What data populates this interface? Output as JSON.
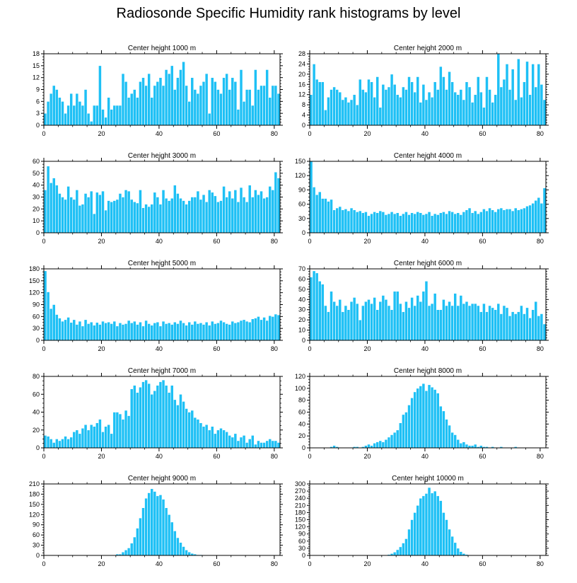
{
  "figure_title": "Radiosonde Specific Humidity rank histograms by level",
  "colors": {
    "bar": "#1ec0f5",
    "bar_edge": "#ffffff",
    "axis": "#000000"
  },
  "chart_data": [
    {
      "type": "bar",
      "title": "Center height 1000 m",
      "xlim": [
        0,
        82
      ],
      "xticks": [
        0,
        20,
        40,
        60,
        80
      ],
      "ylim": [
        0,
        18
      ],
      "yticks": [
        0,
        3,
        6,
        9,
        12,
        15,
        18
      ],
      "categories_start": 0,
      "values": [
        3,
        6,
        8,
        10,
        9,
        7,
        6,
        3,
        5,
        8,
        5,
        8,
        6,
        5,
        9,
        3,
        1,
        5,
        5,
        15,
        4,
        2,
        7,
        4,
        5,
        5,
        5,
        13,
        11,
        7,
        8,
        9,
        7,
        11,
        12,
        10,
        13,
        7,
        10,
        11,
        12,
        10,
        14,
        13,
        15,
        9,
        12,
        14,
        16,
        10,
        6,
        12,
        9,
        8,
        10,
        11,
        13,
        3,
        12,
        11,
        9,
        8,
        12,
        13,
        9,
        12,
        11,
        4,
        14,
        6,
        9,
        9,
        5,
        14,
        9,
        10,
        10,
        14,
        7,
        10,
        10,
        8
      ]
    },
    {
      "type": "bar",
      "title": "Center height 2000 m",
      "xlim": [
        0,
        82
      ],
      "xticks": [
        0,
        20,
        40,
        60,
        80
      ],
      "ylim": [
        0,
        28
      ],
      "yticks": [
        0,
        4,
        8,
        12,
        16,
        20,
        24,
        28
      ],
      "categories_start": 0,
      "values": [
        12,
        24,
        18,
        17,
        17,
        6,
        11,
        14,
        15,
        14,
        13,
        10,
        11,
        9,
        10,
        12,
        8,
        18,
        14,
        13,
        18,
        17,
        11,
        19,
        7,
        16,
        14,
        15,
        20,
        16,
        12,
        11,
        15,
        14,
        19,
        17,
        13,
        19,
        9,
        16,
        10,
        13,
        11,
        17,
        14,
        23,
        19,
        14,
        21,
        17,
        13,
        12,
        14,
        10,
        17,
        15,
        9,
        12,
        19,
        13,
        7,
        19,
        14,
        9,
        12,
        28,
        15,
        18,
        24,
        14,
        22,
        10,
        26,
        11,
        17,
        25,
        12,
        24,
        15,
        24,
        16,
        10
      ]
    },
    {
      "type": "bar",
      "title": "Center height 3000 m",
      "xlim": [
        0,
        82
      ],
      "xticks": [
        0,
        20,
        40,
        60,
        80
      ],
      "ylim": [
        0,
        60
      ],
      "yticks": [
        0,
        10,
        20,
        30,
        40,
        50,
        60
      ],
      "categories_start": 0,
      "values": [
        36,
        56,
        42,
        46,
        40,
        33,
        30,
        28,
        39,
        30,
        28,
        36,
        23,
        24,
        33,
        30,
        35,
        16,
        34,
        32,
        35,
        19,
        27,
        26,
        27,
        28,
        33,
        30,
        36,
        35,
        28,
        26,
        25,
        36,
        21,
        24,
        22,
        24,
        34,
        30,
        24,
        36,
        29,
        27,
        29,
        40,
        33,
        29,
        27,
        24,
        27,
        30,
        30,
        35,
        28,
        32,
        26,
        36,
        34,
        31,
        26,
        27,
        39,
        30,
        35,
        29,
        36,
        26,
        38,
        30,
        26,
        40,
        30,
        36,
        32,
        35,
        29,
        30,
        39,
        36,
        51,
        46,
        34
      ]
    },
    {
      "type": "bar",
      "title": "Center height 4000 m",
      "xlim": [
        0,
        82
      ],
      "xticks": [
        0,
        20,
        40,
        60,
        80
      ],
      "ylim": [
        0,
        150
      ],
      "yticks": [
        0,
        30,
        60,
        90,
        120,
        150
      ],
      "categories_start": 0,
      "values": [
        150,
        96,
        80,
        86,
        72,
        72,
        66,
        70,
        48,
        52,
        55,
        48,
        50,
        46,
        52,
        48,
        44,
        46,
        42,
        44,
        36,
        40,
        44,
        42,
        46,
        44,
        38,
        40,
        44,
        40,
        42,
        36,
        40,
        44,
        38,
        42,
        40,
        44,
        42,
        38,
        40,
        44,
        36,
        40,
        38,
        42,
        44,
        40,
        46,
        44,
        40,
        42,
        38,
        44,
        48,
        52,
        42,
        46,
        40,
        44,
        50,
        46,
        52,
        48,
        44,
        50,
        52,
        48,
        50,
        50,
        46,
        52,
        48,
        50,
        52,
        56,
        58,
        62,
        68,
        74,
        62,
        94,
        64
      ]
    },
    {
      "type": "bar",
      "title": "Center height 5000 m",
      "xlim": [
        0,
        82
      ],
      "xticks": [
        0,
        20,
        40,
        60,
        80
      ],
      "ylim": [
        0,
        180
      ],
      "yticks": [
        0,
        30,
        60,
        90,
        120,
        150,
        180
      ],
      "categories_start": 0,
      "values": [
        175,
        122,
        80,
        90,
        65,
        56,
        48,
        52,
        58,
        45,
        52,
        40,
        48,
        36,
        52,
        42,
        46,
        38,
        45,
        40,
        48,
        44,
        46,
        42,
        48,
        36,
        44,
        40,
        42,
        50,
        44,
        48,
        40,
        46,
        36,
        50,
        42,
        38,
        44,
        46,
        36,
        48,
        42,
        44,
        40,
        46,
        42,
        50,
        44,
        38,
        46,
        40,
        48,
        42,
        44,
        40,
        46,
        38,
        48,
        42,
        44,
        50,
        46,
        42,
        40,
        48,
        44,
        46,
        50,
        52,
        48,
        46,
        54,
        56,
        60,
        52,
        58,
        50,
        62,
        60,
        66,
        64,
        60
      ]
    },
    {
      "type": "bar",
      "title": "Center height 6000 m",
      "xlim": [
        0,
        82
      ],
      "xticks": [
        0,
        20,
        40,
        60,
        80
      ],
      "ylim": [
        0,
        70
      ],
      "yticks": [
        0,
        10,
        20,
        30,
        40,
        50,
        60,
        70
      ],
      "categories_start": 0,
      "values": [
        62,
        68,
        66,
        58,
        55,
        34,
        28,
        48,
        38,
        34,
        40,
        28,
        34,
        30,
        38,
        42,
        36,
        20,
        34,
        38,
        40,
        36,
        42,
        30,
        38,
        44,
        40,
        34,
        30,
        48,
        48,
        36,
        28,
        38,
        32,
        42,
        34,
        44,
        38,
        48,
        58,
        34,
        36,
        46,
        30,
        30,
        40,
        34,
        38,
        34,
        46,
        34,
        44,
        36,
        38,
        34,
        36,
        36,
        34,
        28,
        36,
        28,
        34,
        32,
        30,
        36,
        26,
        34,
        32,
        24,
        28,
        26,
        28,
        34,
        26,
        32,
        22,
        30,
        38,
        24,
        26,
        16,
        26
      ]
    },
    {
      "type": "bar",
      "title": "Center height 7000 m",
      "xlim": [
        0,
        82
      ],
      "xticks": [
        0,
        20,
        40,
        60,
        80
      ],
      "ylim": [
        0,
        80
      ],
      "yticks": [
        0,
        20,
        40,
        60,
        80
      ],
      "categories_start": 0,
      "values": [
        14,
        13,
        10,
        6,
        10,
        8,
        10,
        13,
        10,
        12,
        18,
        20,
        16,
        22,
        26,
        20,
        26,
        24,
        28,
        32,
        18,
        24,
        26,
        16,
        40,
        40,
        38,
        32,
        42,
        36,
        66,
        70,
        62,
        68,
        74,
        76,
        72,
        60,
        64,
        70,
        74,
        76,
        70,
        62,
        70,
        54,
        48,
        60,
        52,
        44,
        40,
        42,
        34,
        32,
        28,
        24,
        26,
        20,
        24,
        16,
        20,
        22,
        20,
        18,
        14,
        12,
        16,
        8,
        12,
        14,
        6,
        10,
        14,
        4,
        8,
        6,
        6,
        8,
        10,
        8,
        8,
        6,
        5
      ]
    },
    {
      "type": "bar",
      "title": "Center height 8000 m",
      "xlim": [
        0,
        82
      ],
      "xticks": [
        0,
        20,
        40,
        60,
        80
      ],
      "ylim": [
        0,
        120
      ],
      "yticks": [
        0,
        20,
        40,
        60,
        80,
        100,
        120
      ],
      "categories_start": 0,
      "values": [
        0,
        0,
        0,
        0,
        0,
        0,
        0,
        2,
        4,
        2,
        0,
        0,
        0,
        0,
        1,
        2,
        2,
        0,
        2,
        4,
        6,
        4,
        8,
        10,
        12,
        10,
        14,
        18,
        22,
        26,
        30,
        42,
        56,
        60,
        72,
        84,
        94,
        100,
        104,
        108,
        96,
        106,
        102,
        98,
        92,
        70,
        62,
        48,
        38,
        26,
        22,
        14,
        8,
        10,
        6,
        4,
        4,
        6,
        2,
        4,
        2,
        2,
        0,
        2,
        0,
        0,
        2,
        0,
        0,
        0,
        0,
        2,
        0,
        0,
        0,
        0,
        0,
        0,
        0,
        0,
        0,
        0,
        0
      ]
    },
    {
      "type": "bar",
      "title": "Center height 9000 m",
      "xlim": [
        0,
        82
      ],
      "xticks": [
        0,
        20,
        40,
        60,
        80
      ],
      "ylim": [
        0,
        210
      ],
      "yticks": [
        0,
        30,
        60,
        90,
        120,
        150,
        180,
        210
      ],
      "categories_start": 0,
      "values": [
        0,
        0,
        0,
        0,
        0,
        0,
        0,
        0,
        0,
        0,
        0,
        0,
        0,
        0,
        0,
        0,
        0,
        0,
        0,
        0,
        0,
        0,
        0,
        0,
        1,
        4,
        4,
        10,
        16,
        22,
        36,
        54,
        80,
        110,
        140,
        168,
        184,
        196,
        188,
        175,
        178,
        165,
        140,
        120,
        98,
        72,
        52,
        38,
        26,
        16,
        10,
        6,
        4,
        2,
        2,
        1,
        1,
        0,
        0,
        0,
        0,
        0,
        0,
        0,
        0,
        0,
        0,
        0,
        0,
        0,
        0,
        0,
        0,
        0,
        0,
        0,
        0,
        0,
        0,
        0,
        0,
        0,
        0
      ]
    },
    {
      "type": "bar",
      "title": "Center height 10000 m",
      "xlim": [
        0,
        82
      ],
      "xticks": [
        0,
        20,
        40,
        60,
        80
      ],
      "ylim": [
        0,
        300
      ],
      "yticks": [
        0,
        30,
        60,
        90,
        120,
        150,
        180,
        210,
        240,
        270,
        300
      ],
      "categories_start": 0,
      "values": [
        0,
        0,
        0,
        0,
        0,
        0,
        0,
        0,
        0,
        0,
        0,
        0,
        0,
        0,
        0,
        0,
        0,
        0,
        0,
        0,
        0,
        0,
        0,
        0,
        0,
        0,
        1,
        4,
        8,
        14,
        24,
        36,
        52,
        70,
        110,
        150,
        180,
        210,
        240,
        250,
        260,
        285,
        262,
        270,
        250,
        230,
        180,
        150,
        110,
        80,
        54,
        30,
        16,
        8,
        4,
        2,
        1,
        0,
        0,
        0,
        0,
        0,
        0,
        0,
        0,
        0,
        0,
        0,
        0,
        0,
        0,
        0,
        0,
        0,
        0,
        0,
        0,
        0,
        0,
        0,
        0,
        0,
        0
      ]
    }
  ]
}
